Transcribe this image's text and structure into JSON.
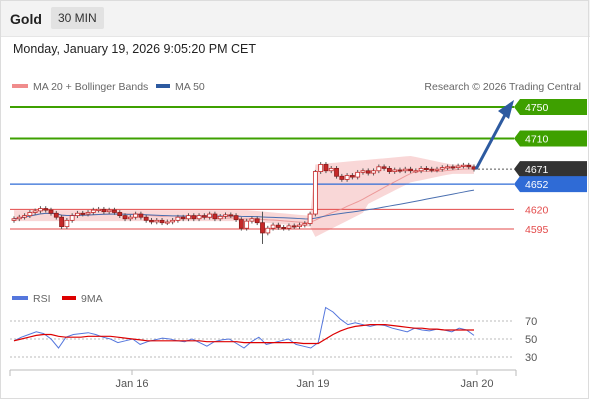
{
  "header": {
    "symbol": "Gold",
    "timeframe": "30 MIN",
    "datetime": "Monday, January 19, 2026 9:05:20 PM CET"
  },
  "legend": {
    "ma20": "MA 20 + Bollinger Bands",
    "ma50": "MA 50",
    "rsi": "RSI",
    "rsi_ma": "9MA",
    "credit": "Research © 2026 Trading Central"
  },
  "colors": {
    "up": "#2f9b2f",
    "resistance": "#3ea000",
    "current": "#333333",
    "ma50": "#2f6bd6",
    "support": "#e34a4a",
    "bollinger": "#f7c9c9",
    "ma20": "#e88a8a",
    "rsi": "#5577dd",
    "rsi_ma": "#dd0000",
    "arrow": "#2d5aa0"
  },
  "chart_data": [
    {
      "type": "candlestick",
      "x_ticks": [
        "Jan 16",
        "Jan 19",
        "Jan 20"
      ],
      "y_range": [
        4555,
        4775
      ],
      "levels": [
        {
          "name": "resistance-2",
          "value": 4750,
          "label": "4750",
          "style": "resistance"
        },
        {
          "name": "resistance-1",
          "value": 4710,
          "label": "4710",
          "style": "resistance"
        },
        {
          "name": "last-price",
          "value": 4671,
          "label": "4671",
          "style": "current"
        },
        {
          "name": "pivot",
          "value": 4652,
          "label": "4652",
          "style": "pivot"
        },
        {
          "name": "support-1",
          "value": 4620,
          "label": "4620",
          "style": "support"
        },
        {
          "name": "support-2",
          "value": 4595,
          "label": "4595",
          "style": "support"
        }
      ],
      "close_series": [
        4608,
        4610,
        4612,
        4616,
        4618,
        4621,
        4619,
        4615,
        4610,
        4598,
        4606,
        4612,
        4615,
        4614,
        4616,
        4619,
        4620,
        4617,
        4619,
        4616,
        4612,
        4608,
        4610,
        4614,
        4610,
        4606,
        4604,
        4606,
        4603,
        4604,
        4606,
        4610,
        4608,
        4612,
        4608,
        4612,
        4610,
        4614,
        4608,
        4611,
        4613,
        4612,
        4607,
        4596,
        4605,
        4608,
        4603,
        4590,
        4596,
        4600,
        4597,
        4596,
        4599,
        4598,
        4600,
        4602,
        4614,
        4668,
        4677,
        4669,
        4672,
        4662,
        4658,
        4663,
        4661,
        4667,
        4669,
        4666,
        4669,
        4674,
        4672,
        4668,
        4670,
        4669,
        4671,
        4669,
        4669,
        4672,
        4671,
        4670,
        4671,
        4673,
        4674,
        4673,
        4675,
        4676,
        4674,
        4671
      ],
      "forecast_target": 4750
    },
    {
      "type": "line",
      "name": "RSI panel",
      "y_ticks": [
        70,
        50,
        30
      ],
      "series": [
        {
          "name": "RSI",
          "values": [
            48,
            52,
            55,
            58,
            56,
            50,
            40,
            52,
            55,
            56,
            57,
            55,
            52,
            50,
            46,
            48,
            50,
            44,
            47,
            49,
            51,
            50,
            48,
            47,
            50,
            46,
            42,
            47,
            49,
            50,
            45,
            40,
            47,
            52,
            44,
            46,
            48,
            50,
            44,
            42,
            40,
            46,
            85,
            80,
            72,
            66,
            68,
            66,
            64,
            66,
            65,
            62,
            60,
            58,
            62,
            60,
            59,
            61,
            60,
            58,
            62,
            60,
            54
          ]
        },
        {
          "name": "9MA",
          "values": [
            48,
            50,
            52,
            54,
            55,
            55,
            53,
            52,
            52,
            52,
            53,
            53,
            53,
            53,
            52,
            51,
            50,
            49,
            48,
            48,
            48,
            48,
            48,
            48,
            48,
            48,
            47,
            47,
            47,
            47,
            47,
            46,
            46,
            46,
            46,
            46,
            46,
            46,
            46,
            45,
            45,
            45,
            50,
            55,
            59,
            62,
            64,
            65,
            66,
            66,
            66,
            65,
            64,
            63,
            62,
            62,
            61,
            61,
            60,
            60,
            60,
            60,
            60
          ]
        }
      ]
    }
  ]
}
